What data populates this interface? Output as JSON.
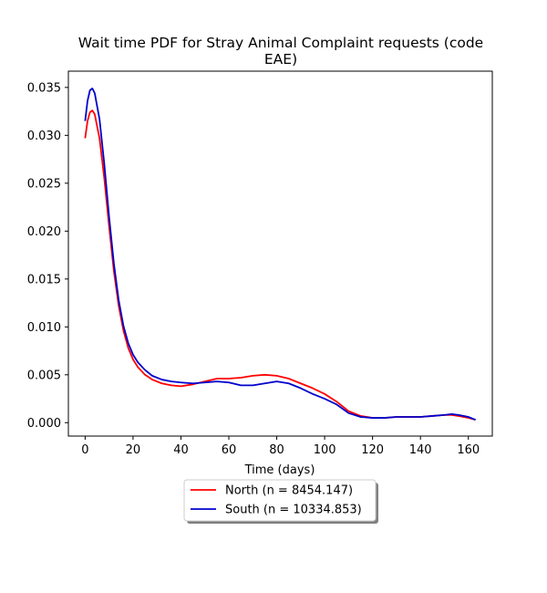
{
  "chart_data": {
    "type": "line",
    "title_line1": "Wait time PDF for Stray Animal Complaint  requests (code",
    "title_line2": "EAE)",
    "xlabel": "Time (days)",
    "ylabel": "",
    "xlim": [
      -7,
      170
    ],
    "ylim": [
      -0.0014,
      0.0367
    ],
    "xticks": [
      0,
      20,
      40,
      60,
      80,
      100,
      120,
      140,
      160
    ],
    "xtick_labels": [
      "0",
      "20",
      "40",
      "60",
      "80",
      "100",
      "120",
      "140",
      "160"
    ],
    "yticks": [
      0.0,
      0.005,
      0.01,
      0.015,
      0.02,
      0.025,
      0.03,
      0.035
    ],
    "ytick_labels": [
      "0.000",
      "0.005",
      "0.010",
      "0.015",
      "0.020",
      "0.025",
      "0.030",
      "0.035"
    ],
    "grid": false,
    "legend_position": "below-center",
    "series": [
      {
        "name": "North (n = 8454.147)",
        "color": "#ff0000",
        "x": [
          0,
          1,
          2,
          3,
          4,
          6,
          8,
          10,
          12,
          14,
          16,
          18,
          20,
          22,
          25,
          28,
          32,
          36,
          40,
          45,
          50,
          55,
          60,
          65,
          70,
          75,
          80,
          85,
          90,
          95,
          100,
          105,
          110,
          115,
          120,
          125,
          130,
          135,
          140,
          145,
          150,
          153,
          156,
          160,
          163
        ],
        "y": [
          0.0297,
          0.0315,
          0.0324,
          0.0326,
          0.0322,
          0.0297,
          0.0255,
          0.0205,
          0.0158,
          0.0122,
          0.0096,
          0.0078,
          0.0066,
          0.0058,
          0.005,
          0.0045,
          0.0041,
          0.0039,
          0.0038,
          0.004,
          0.0043,
          0.0046,
          0.0046,
          0.0047,
          0.0049,
          0.005,
          0.0049,
          0.0046,
          0.0041,
          0.0036,
          0.003,
          0.0022,
          0.0012,
          0.0007,
          0.0005,
          0.0005,
          0.0006,
          0.0006,
          0.0006,
          0.0007,
          0.0008,
          0.0008,
          0.0007,
          0.0005,
          0.0003
        ]
      },
      {
        "name": "South (n = 10334.853)",
        "color": "#0000cc",
        "x": [
          0,
          1,
          2,
          3,
          4,
          6,
          8,
          10,
          12,
          14,
          16,
          18,
          20,
          22,
          25,
          28,
          32,
          36,
          40,
          45,
          50,
          55,
          60,
          65,
          70,
          75,
          80,
          85,
          90,
          95,
          100,
          105,
          110,
          115,
          120,
          125,
          130,
          135,
          140,
          145,
          150,
          153,
          156,
          160,
          163
        ],
        "y": [
          0.0315,
          0.0336,
          0.0347,
          0.0349,
          0.0344,
          0.0317,
          0.027,
          0.0215,
          0.0166,
          0.0128,
          0.0101,
          0.0083,
          0.0071,
          0.0063,
          0.0055,
          0.0049,
          0.0045,
          0.0043,
          0.0042,
          0.0041,
          0.0042,
          0.0043,
          0.0042,
          0.0039,
          0.0039,
          0.0041,
          0.0043,
          0.0041,
          0.0036,
          0.003,
          0.0025,
          0.0019,
          0.001,
          0.0006,
          0.0005,
          0.0005,
          0.0006,
          0.0006,
          0.0006,
          0.0007,
          0.0008,
          0.0009,
          0.0008,
          0.0006,
          0.0003
        ]
      }
    ]
  }
}
